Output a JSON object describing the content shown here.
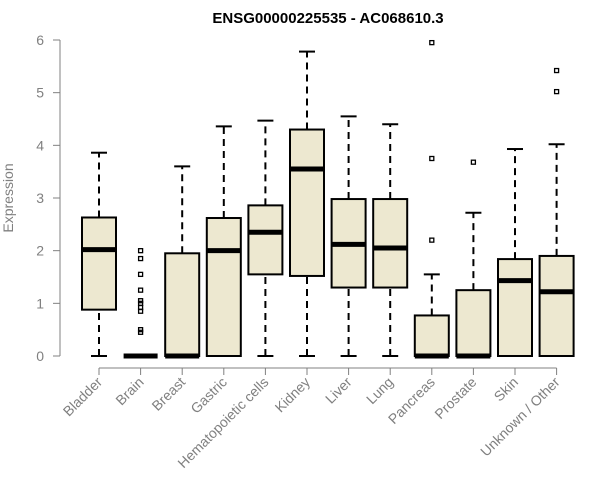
{
  "chart_data": {
    "type": "box",
    "title": "ENSG00000225535 - AC068610.3",
    "ylabel": "Expression",
    "xlabel": "",
    "ylim": [
      0,
      6
    ],
    "yticks": [
      0,
      1,
      2,
      3,
      4,
      5,
      6
    ],
    "grid": false,
    "categories": [
      "Bladder",
      "Brain",
      "Breast",
      "Gastric",
      "Hematopoietic cells",
      "Kidney",
      "Liver",
      "Lung",
      "Pancreas",
      "Prostate",
      "Skin",
      "Unknown / Other"
    ],
    "boxes": [
      {
        "category": "Bladder",
        "min": 0,
        "q1": 0.88,
        "median": 2.02,
        "q3": 2.63,
        "max": 3.86,
        "outliers": []
      },
      {
        "category": "Brain",
        "min": 0,
        "q1": 0,
        "median": 0,
        "q3": 0,
        "max": 0,
        "outliers": [
          2.0,
          1.85,
          1.55,
          1.25,
          1.05,
          1.0,
          0.92,
          0.85,
          0.5,
          0.45
        ]
      },
      {
        "category": "Breast",
        "min": 0,
        "q1": 0,
        "median": 0,
        "q3": 1.95,
        "max": 3.6,
        "outliers": []
      },
      {
        "category": "Gastric",
        "min": 0,
        "q1": 0,
        "median": 2.0,
        "q3": 2.62,
        "max": 4.36,
        "outliers": []
      },
      {
        "category": "Hematopoietic cells",
        "min": 0,
        "q1": 1.55,
        "median": 2.35,
        "q3": 2.86,
        "max": 4.47,
        "outliers": []
      },
      {
        "category": "Kidney",
        "min": 0,
        "q1": 1.52,
        "median": 3.55,
        "q3": 4.3,
        "max": 5.78,
        "outliers": []
      },
      {
        "category": "Liver",
        "min": 0,
        "q1": 1.3,
        "median": 2.12,
        "q3": 2.98,
        "max": 4.55,
        "outliers": []
      },
      {
        "category": "Lung",
        "min": 0,
        "q1": 1.3,
        "median": 2.05,
        "q3": 2.98,
        "max": 4.4,
        "outliers": []
      },
      {
        "category": "Pancreas",
        "min": 0,
        "q1": 0,
        "median": 0,
        "q3": 0.77,
        "max": 1.55,
        "outliers": [
          5.95,
          3.75,
          2.2
        ]
      },
      {
        "category": "Prostate",
        "min": 0,
        "q1": 0,
        "median": 0,
        "q3": 1.25,
        "max": 2.72,
        "outliers": [
          3.68
        ]
      },
      {
        "category": "Skin",
        "min": 0,
        "q1": 0,
        "median": 1.43,
        "q3": 1.84,
        "max": 3.93,
        "outliers": []
      },
      {
        "category": "Unknown / Other",
        "min": 0,
        "q1": 0,
        "median": 1.22,
        "q3": 1.9,
        "max": 4.02,
        "outliers": [
          5.42,
          5.02
        ]
      }
    ],
    "colors": {
      "box_fill": "#EDE8D0",
      "box_stroke": "#000000",
      "axis": "#808080"
    }
  }
}
